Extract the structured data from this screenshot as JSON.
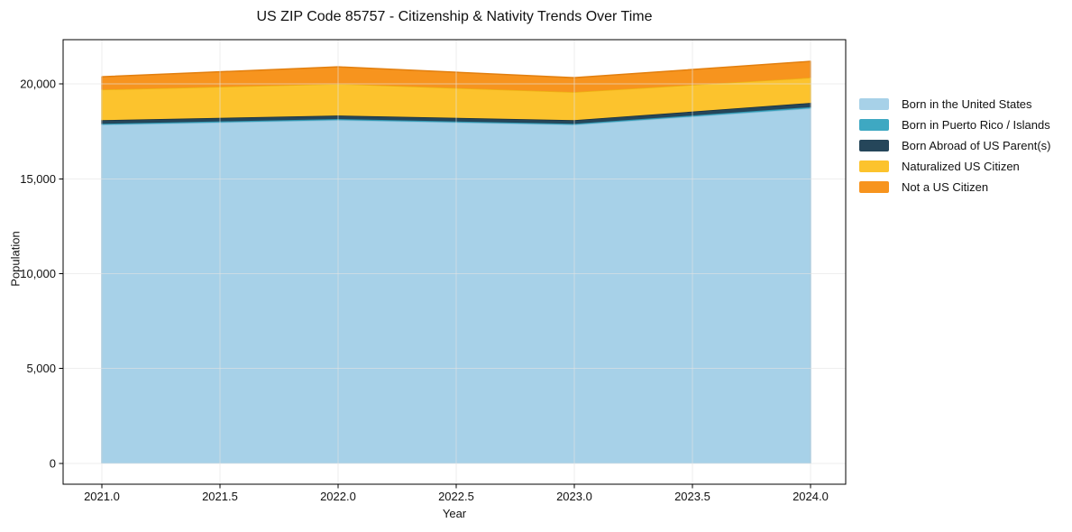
{
  "chart_data": {
    "type": "area",
    "stacked": true,
    "title": "US ZIP Code 85757 - Citizenship & Nativity Trends Over Time",
    "xlabel": "Year",
    "ylabel": "Population",
    "x": [
      2021,
      2022,
      2023,
      2024
    ],
    "series": [
      {
        "name": "Born in the United States",
        "color": "#a7d1e8",
        "edge": "#90c1db",
        "values": [
          17850,
          18090,
          17850,
          18710
        ]
      },
      {
        "name": "Born in Puerto Rico / Islands",
        "color": "#3ea8c2",
        "edge": "#2e93ac",
        "values": [
          50,
          60,
          50,
          70
        ]
      },
      {
        "name": "Born Abroad of US Parent(s)",
        "color": "#25465a",
        "edge": "#182f3e",
        "values": [
          190,
          185,
          190,
          220
        ]
      },
      {
        "name": "Naturalized US Citizen",
        "color": "#fcc32d",
        "edge": "#edb112",
        "values": [
          1610,
          1665,
          1480,
          1330
        ]
      },
      {
        "name": "Not a US Citizen",
        "color": "#f7941e",
        "edge": "#e27f0f",
        "values": [
          680,
          900,
          760,
          860
        ]
      }
    ],
    "totals": [
      20380,
      20900,
      20330,
      21190
    ],
    "xlim": [
      2020.836,
      2024.149
    ],
    "ylim": [
      -1095,
      22333
    ],
    "xticks": [
      2021.0,
      2021.5,
      2022.0,
      2022.5,
      2023.0,
      2023.5,
      2024.0
    ],
    "xtick_labels": [
      "2021.0",
      "2021.5",
      "2022.0",
      "2022.5",
      "2023.0",
      "2023.5",
      "2024.0"
    ],
    "yticks": [
      0,
      5000,
      10000,
      15000,
      20000
    ],
    "ytick_labels": [
      "0",
      "5,000",
      "10,000",
      "15,000",
      "20,000"
    ],
    "grid": true,
    "legend_position": "right-outside",
    "colors": {
      "background": "#ffffff",
      "grid": "#e2e2e2",
      "spine": "#000000",
      "text": "#111111"
    }
  }
}
